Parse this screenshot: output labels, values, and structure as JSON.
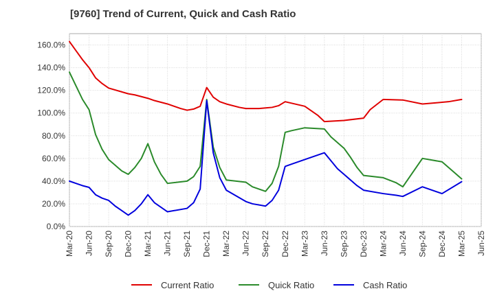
{
  "chart_data": {
    "type": "line",
    "title": "[9760]  Trend of Current, Quick and Cash Ratio",
    "xlabel": "",
    "ylabel": "",
    "ylim": [
      0,
      170
    ],
    "y_ticks": [
      0,
      20,
      40,
      60,
      80,
      100,
      120,
      140,
      160
    ],
    "y_tick_labels": [
      "0.0%",
      "20.0%",
      "40.0%",
      "60.0%",
      "80.0%",
      "100.0%",
      "120.0%",
      "140.0%",
      "160.0%"
    ],
    "x_range": [
      0,
      63
    ],
    "x_ticks": [
      0,
      3,
      6,
      9,
      12,
      15,
      18,
      21,
      24,
      27,
      30,
      33,
      36,
      39,
      42,
      45,
      48,
      51,
      54,
      57,
      60,
      63
    ],
    "x_tick_labels": [
      "Mar-20",
      "Jun-20",
      "Sep-20",
      "Dec-20",
      "Mar-21",
      "Jun-21",
      "Sep-21",
      "Dec-21",
      "Mar-22",
      "Jun-22",
      "Sep-22",
      "Dec-22",
      "Mar-23",
      "Jun-23",
      "Sep-23",
      "Dec-23",
      "Mar-24",
      "Jun-24",
      "Sep-24",
      "Dec-24",
      "Mar-25",
      "Jun-25"
    ],
    "grid": true,
    "legend_position": "bottom",
    "series": [
      {
        "name": "Current Ratio",
        "color": "#e00000",
        "points": [
          [
            0,
            163
          ],
          [
            1,
            155
          ],
          [
            2,
            147
          ],
          [
            3,
            140
          ],
          [
            4,
            131
          ],
          [
            5,
            126
          ],
          [
            6,
            122
          ],
          [
            9,
            117
          ],
          [
            10,
            116
          ],
          [
            12,
            113
          ],
          [
            13,
            111
          ],
          [
            15,
            108
          ],
          [
            17,
            104
          ],
          [
            18,
            102.5
          ],
          [
            19,
            103.5
          ],
          [
            20,
            106
          ],
          [
            21,
            122.5
          ],
          [
            22,
            114
          ],
          [
            23,
            110
          ],
          [
            24,
            108
          ],
          [
            26,
            105
          ],
          [
            27,
            104
          ],
          [
            29,
            104
          ],
          [
            30,
            104.5
          ],
          [
            31,
            105
          ],
          [
            32,
            106.5
          ],
          [
            33,
            110
          ],
          [
            36,
            106
          ],
          [
            38,
            98
          ],
          [
            39,
            92.5
          ],
          [
            42,
            93.5
          ],
          [
            45,
            95.5
          ],
          [
            46,
            103
          ],
          [
            48,
            112
          ],
          [
            51,
            111.5
          ],
          [
            54,
            108
          ],
          [
            56,
            109
          ],
          [
            58,
            110
          ],
          [
            60,
            112
          ]
        ]
      },
      {
        "name": "Quick Ratio",
        "color": "#2a8a2a",
        "points": [
          [
            0,
            136
          ],
          [
            1,
            124
          ],
          [
            2,
            112
          ],
          [
            3,
            103
          ],
          [
            4,
            81
          ],
          [
            5,
            68
          ],
          [
            6,
            59
          ],
          [
            7,
            54
          ],
          [
            8,
            49
          ],
          [
            9,
            46
          ],
          [
            10,
            52
          ],
          [
            11,
            60
          ],
          [
            12,
            73
          ],
          [
            13,
            57
          ],
          [
            14,
            46
          ],
          [
            15,
            38
          ],
          [
            18,
            40
          ],
          [
            19,
            44
          ],
          [
            20,
            53
          ],
          [
            21,
            112
          ],
          [
            22,
            70
          ],
          [
            23,
            52
          ],
          [
            24,
            41
          ],
          [
            27,
            39
          ],
          [
            28,
            35
          ],
          [
            30,
            31
          ],
          [
            31,
            38
          ],
          [
            32,
            53
          ],
          [
            33,
            83
          ],
          [
            34,
            84.5
          ],
          [
            36,
            87
          ],
          [
            39,
            86
          ],
          [
            40,
            79
          ],
          [
            42,
            69
          ],
          [
            43,
            61
          ],
          [
            44,
            52
          ],
          [
            45,
            45
          ],
          [
            48,
            43
          ],
          [
            50,
            38.5
          ],
          [
            51,
            35
          ],
          [
            54,
            60
          ],
          [
            57,
            57
          ],
          [
            60,
            42
          ]
        ]
      },
      {
        "name": "Cash Ratio",
        "color": "#0000dd",
        "points": [
          [
            0,
            40
          ],
          [
            1,
            38
          ],
          [
            2,
            36
          ],
          [
            3,
            34.5
          ],
          [
            4,
            28
          ],
          [
            5,
            25
          ],
          [
            6,
            23
          ],
          [
            7,
            18
          ],
          [
            8,
            14
          ],
          [
            9,
            10
          ],
          [
            10,
            14
          ],
          [
            11,
            20
          ],
          [
            12,
            28
          ],
          [
            13,
            21
          ],
          [
            14,
            17
          ],
          [
            15,
            13
          ],
          [
            18,
            16
          ],
          [
            19,
            21
          ],
          [
            20,
            33
          ],
          [
            21,
            111
          ],
          [
            22,
            65
          ],
          [
            23,
            43
          ],
          [
            24,
            32
          ],
          [
            27,
            22
          ],
          [
            28,
            20
          ],
          [
            30,
            18
          ],
          [
            31,
            23
          ],
          [
            32,
            32
          ],
          [
            33,
            53
          ],
          [
            34,
            55
          ],
          [
            36,
            59
          ],
          [
            39,
            65
          ],
          [
            40,
            58
          ],
          [
            41,
            51
          ],
          [
            43,
            41
          ],
          [
            44,
            36
          ],
          [
            45,
            32
          ],
          [
            48,
            29
          ],
          [
            50,
            27.5
          ],
          [
            51,
            26.5
          ],
          [
            54,
            35
          ],
          [
            57,
            29
          ],
          [
            60,
            39.5
          ]
        ]
      }
    ]
  }
}
